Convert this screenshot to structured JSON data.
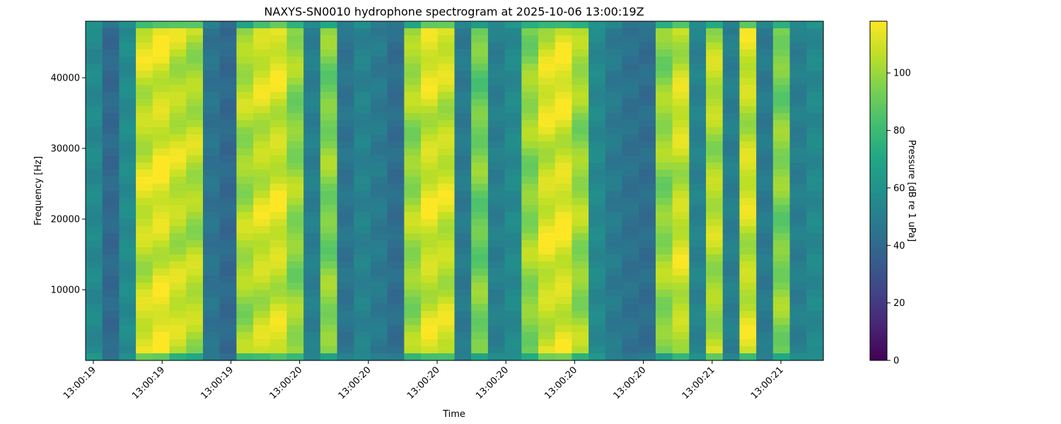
{
  "chart_data": {
    "type": "heatmap",
    "title": "NAXYS-SN0010 hydrophone spectrogram at 2025-10-06 13:00:19Z",
    "xlabel": "Time",
    "ylabel": "Frequency [Hz]",
    "colorbar_label": "Pressure [dB re 1 uPa]",
    "colormap": "viridis",
    "ylim": [
      0,
      48000
    ],
    "clim": [
      0,
      118
    ],
    "y_ticks": [
      10000,
      20000,
      30000,
      40000
    ],
    "y_tick_labels": [
      "10000",
      "20000",
      "30000",
      "40000"
    ],
    "x_tick_labels": [
      "13:00:19",
      "13:00:19",
      "13:00:19",
      "13:00:20",
      "13:00:20",
      "13:00:20",
      "13:00:20",
      "13:00:20",
      "13:00:20",
      "13:00:21",
      "13:00:21"
    ],
    "colorbar_ticks": [
      0,
      20,
      40,
      60,
      80,
      100
    ],
    "colorbar_tick_labels": [
      "0",
      "20",
      "40",
      "60",
      "80",
      "100"
    ],
    "time_columns_db": [
      55,
      40,
      56,
      108,
      112,
      107,
      104,
      45,
      40,
      102,
      108,
      110,
      98,
      50,
      95,
      45,
      52,
      48,
      42,
      100,
      110,
      108,
      48,
      92,
      50,
      55,
      98,
      110,
      112,
      100,
      55,
      48,
      44,
      42,
      98,
      108,
      52,
      104,
      50,
      108,
      48,
      95,
      50,
      55
    ],
    "grid": false,
    "legend": "colorbar-right"
  }
}
